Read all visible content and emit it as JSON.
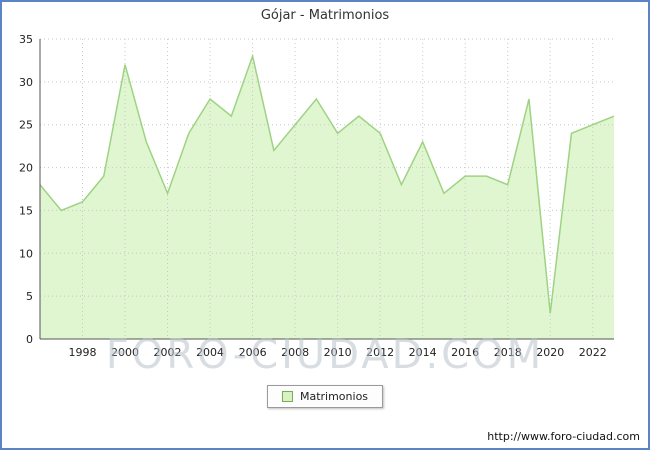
{
  "title": "Gójar - Matrimonios",
  "legend": {
    "label": "Matrimonios"
  },
  "watermark": "FORO-CIUDAD.COM",
  "footer": {
    "url": "http://www.foro-ciudad.com"
  },
  "colors": {
    "frame": "#5b84c4",
    "area_fill": "#e0f6d0",
    "line_stroke": "#9ed383",
    "grid": "#c8c8c8",
    "axis": "#555555",
    "text": "#222222"
  },
  "chart_data": {
    "type": "area",
    "title": "Gójar - Matrimonios",
    "xlabel": "",
    "ylabel": "",
    "ylim": [
      0,
      35
    ],
    "yticks": [
      0,
      5,
      10,
      15,
      20,
      25,
      30,
      35
    ],
    "xticks": [
      1998,
      2000,
      2002,
      2004,
      2006,
      2008,
      2010,
      2012,
      2014,
      2016,
      2018,
      2020,
      2022
    ],
    "legend_position": "bottom",
    "grid": true,
    "x": [
      1996,
      1997,
      1998,
      1999,
      2000,
      2001,
      2002,
      2003,
      2004,
      2005,
      2006,
      2007,
      2008,
      2009,
      2010,
      2011,
      2012,
      2013,
      2014,
      2015,
      2016,
      2017,
      2018,
      2019,
      2020,
      2021,
      2022,
      2023
    ],
    "series": [
      {
        "name": "Matrimonios",
        "values": [
          18,
          15,
          16,
          19,
          32,
          23,
          17,
          24,
          28,
          26,
          33,
          22,
          25,
          28,
          24,
          26,
          24,
          18,
          23,
          17,
          19,
          19,
          18,
          28,
          3,
          24,
          25,
          26
        ]
      }
    ]
  }
}
